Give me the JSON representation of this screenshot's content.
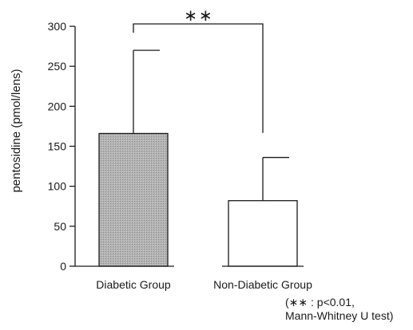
{
  "chart_data": {
    "type": "bar",
    "categories": [
      "Diabetic Group",
      "Non-Diabetic Group"
    ],
    "values": [
      166,
      82
    ],
    "error_upper": [
      270,
      136
    ],
    "bar_fills": [
      "#a9a9a9",
      "#ffffff"
    ],
    "title": "",
    "xlabel": "",
    "ylabel": "pentosidine (pmol/lens)",
    "ylim": [
      0,
      300
    ],
    "yticks": [
      0,
      50,
      100,
      150,
      200,
      250,
      300
    ],
    "grid": false,
    "significance": {
      "between": [
        0,
        1
      ],
      "label": "∗∗"
    },
    "footnote_lines": [
      "(∗∗ : p<0.01,",
      "Mann-Whitney U test)"
    ]
  }
}
